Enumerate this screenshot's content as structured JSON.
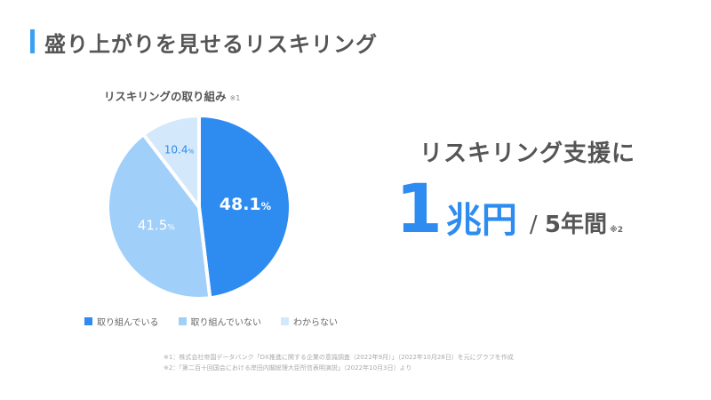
{
  "title": "盛り上がりを見せるリスキリング",
  "chart_title": "リスキリングの取り組み",
  "chart_note": "※1",
  "chart_data": {
    "type": "pie",
    "title": "リスキリングの取り組み",
    "categories": [
      "取り組んでいる",
      "取り組んでいない",
      "わからない"
    ],
    "values": [
      48.1,
      41.5,
      10.4
    ],
    "labels": [
      "48.1",
      "41.5",
      "10.4"
    ],
    "unit": "%",
    "colors": [
      "#2e8cf0",
      "#a0cffa",
      "#d3e8fb"
    ],
    "label_colors": [
      "#ffffff",
      "#ffffff",
      "#2e8cf0"
    ],
    "legend": "bottom"
  },
  "headline": "リスキリング支援に",
  "amount_number": "1",
  "amount_unit": "兆円",
  "period_sep": "/",
  "period": "5年間",
  "amount_note": "※2",
  "footnotes": [
    "※1：株式会社帝国データバンク「DX推進に関する企業の意識調査（2022年9月）」（2022年10月28日）を元にグラフを作成",
    "※2：「第二百十回国会における岸田内閣総理大臣所信表明演説」（2022年10月3日）より"
  ]
}
